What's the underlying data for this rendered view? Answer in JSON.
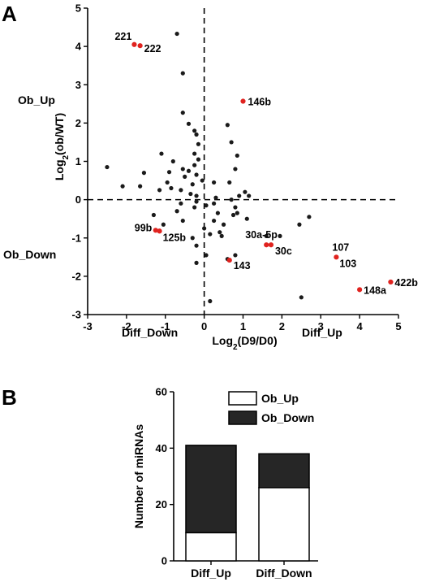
{
  "panels": {
    "a_label": "A",
    "b_label": "B"
  },
  "quadrant_labels": {
    "ob_up": "Ob_Up",
    "ob_down": "Ob_Down",
    "diff_down": "Diff_Down",
    "diff_up": "Diff_Up"
  },
  "colors": {
    "black_point": "#1a1a1a",
    "red_point": "#e0231f",
    "ob_up_fill": "#ffffff",
    "ob_down_fill": "#262626"
  },
  "chart_data": [
    {
      "type": "scatter",
      "xlabel": "Log2(D9/D0)",
      "ylabel": "Log2(ob/WT)",
      "xlim": [
        -3,
        5
      ],
      "ylim": [
        -3,
        5
      ],
      "xticks": [
        -3,
        -2,
        -1,
        0,
        1,
        2,
        3,
        4,
        5
      ],
      "yticks": [
        -3,
        -2,
        -1,
        0,
        1,
        2,
        3,
        4,
        5
      ],
      "reference_lines": {
        "x": 0,
        "y": 0,
        "style": "dashed"
      },
      "points": [
        [
          -0.7,
          4.33
        ],
        [
          -0.55,
          3.3
        ],
        [
          -0.55,
          2.27
        ],
        [
          -0.4,
          1.98
        ],
        [
          -0.25,
          1.8
        ],
        [
          -0.2,
          1.7
        ],
        [
          -0.15,
          1.45
        ],
        [
          -1.1,
          1.2
        ],
        [
          -0.8,
          1.0
        ],
        [
          -0.25,
          1.2
        ],
        [
          -0.15,
          1.05
        ],
        [
          -0.25,
          0.9
        ],
        [
          -0.55,
          0.8
        ],
        [
          -0.4,
          0.75
        ],
        [
          -0.2,
          0.65
        ],
        [
          -0.5,
          0.6
        ],
        [
          -2.5,
          0.85
        ],
        [
          -1.55,
          0.7
        ],
        [
          -0.9,
          0.72
        ],
        [
          -0.05,
          0.5
        ],
        [
          -0.95,
          0.45
        ],
        [
          -0.3,
          0.4
        ],
        [
          -2.1,
          0.35
        ],
        [
          -1.65,
          0.35
        ],
        [
          -0.85,
          0.3
        ],
        [
          -1.15,
          0.25
        ],
        [
          -0.6,
          0.25
        ],
        [
          -0.35,
          0.15
        ],
        [
          -0.2,
          0.1
        ],
        [
          -0.2,
          -0.05
        ],
        [
          0.25,
          0.45
        ],
        [
          0.65,
          0.45
        ],
        [
          0.8,
          0.8
        ],
        [
          0.85,
          1.15
        ],
        [
          0.7,
          1.5
        ],
        [
          0.6,
          1.95
        ],
        [
          1.15,
          0.1
        ],
        [
          1.05,
          0.2
        ],
        [
          0.9,
          0.1
        ],
        [
          0.7,
          0.0
        ],
        [
          0.3,
          0.05
        ],
        [
          0.25,
          -0.1
        ],
        [
          -0.6,
          -0.1
        ],
        [
          -0.7,
          -0.3
        ],
        [
          -1.3,
          -0.4
        ],
        [
          -0.25,
          -0.2
        ],
        [
          0.05,
          -0.15
        ],
        [
          0.35,
          -0.35
        ],
        [
          0.25,
          -0.55
        ],
        [
          -0.55,
          -0.55
        ],
        [
          -1.05,
          -0.65
        ],
        [
          0.5,
          -0.65
        ],
        [
          0.75,
          -0.4
        ],
        [
          0.8,
          -0.2
        ],
        [
          0.85,
          -0.35
        ],
        [
          1.1,
          -0.5
        ],
        [
          0.4,
          -0.85
        ],
        [
          0.45,
          -0.95
        ],
        [
          0.0,
          -0.75
        ],
        [
          0.15,
          -0.9
        ],
        [
          -0.3,
          -1.0
        ],
        [
          -0.2,
          -1.2
        ],
        [
          0.05,
          -1.45
        ],
        [
          -0.2,
          -1.65
        ],
        [
          0.6,
          -1.55
        ],
        [
          0.8,
          -1.45
        ],
        [
          1.6,
          -0.95
        ],
        [
          1.95,
          -0.95
        ],
        [
          2.45,
          -0.65
        ],
        [
          2.7,
          -0.45
        ],
        [
          2.5,
          -2.55
        ],
        [
          0.15,
          -2.65
        ]
      ],
      "highlighted": [
        {
          "label": "221",
          "x": -1.8,
          "y": 4.05
        },
        {
          "label": "222",
          "x": -1.65,
          "y": 4.02
        },
        {
          "label": "146b",
          "x": 1.0,
          "y": 2.57
        },
        {
          "label": "99b",
          "x": -1.25,
          "y": -0.8
        },
        {
          "label": "125b",
          "x": -1.15,
          "y": -0.82
        },
        {
          "label": "143",
          "x": 0.65,
          "y": -1.58
        },
        {
          "label": "30a-5p",
          "x": 1.6,
          "y": -1.18
        },
        {
          "label": "30c",
          "x": 1.72,
          "y": -1.18
        },
        {
          "label": "107",
          "x": 3.4,
          "y": -1.5
        },
        {
          "label": "103",
          "x": 3.4,
          "y": -1.5
        },
        {
          "label": "148a",
          "x": 4.0,
          "y": -2.35
        },
        {
          "label": "422b",
          "x": 4.8,
          "y": -2.15
        }
      ]
    },
    {
      "type": "bar",
      "stacked": true,
      "ylabel": "Number of miRNAs",
      "ylim": [
        0,
        60
      ],
      "yticks": [
        0,
        20,
        40,
        60
      ],
      "categories": [
        "Diff_Up",
        "Diff_Down"
      ],
      "series": [
        {
          "name": "Ob_Up",
          "values": [
            10,
            26
          ]
        },
        {
          "name": "Ob_Down",
          "values": [
            31,
            12
          ]
        }
      ],
      "legend": "top-right"
    }
  ]
}
